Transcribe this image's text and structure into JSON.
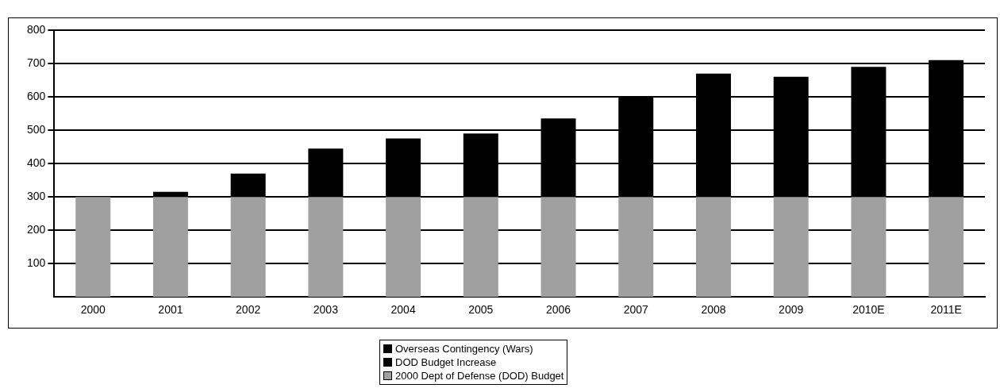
{
  "chart_data": {
    "type": "bar",
    "stacked": true,
    "categories": [
      "2000",
      "2001",
      "2002",
      "2003",
      "2004",
      "2005",
      "2006",
      "2007",
      "2008",
      "2009",
      "2010E",
      "2011E"
    ],
    "series": [
      {
        "name": "2000 Dept  of Defense (DOD) Budget",
        "color": "#a0a0a0",
        "values": [
          300,
          300,
          300,
          300,
          300,
          300,
          300,
          300,
          300,
          300,
          300,
          300
        ]
      },
      {
        "name": "DOD Budget Increase",
        "color": "#000000",
        "values": [
          0,
          15,
          70,
          145,
          175,
          190,
          235,
          300,
          370,
          360,
          390,
          410
        ]
      },
      {
        "name": "Overseas Contingency (Wars)",
        "color": "#000000",
        "values": [
          null,
          null,
          null,
          null,
          null,
          null,
          null,
          null,
          null,
          null,
          null,
          null
        ]
      }
    ],
    "ylim": [
      0,
      800
    ],
    "yticks": [
      100,
      200,
      300,
      400,
      500,
      600,
      700,
      800
    ],
    "grid": "y",
    "legend": "bottom"
  }
}
